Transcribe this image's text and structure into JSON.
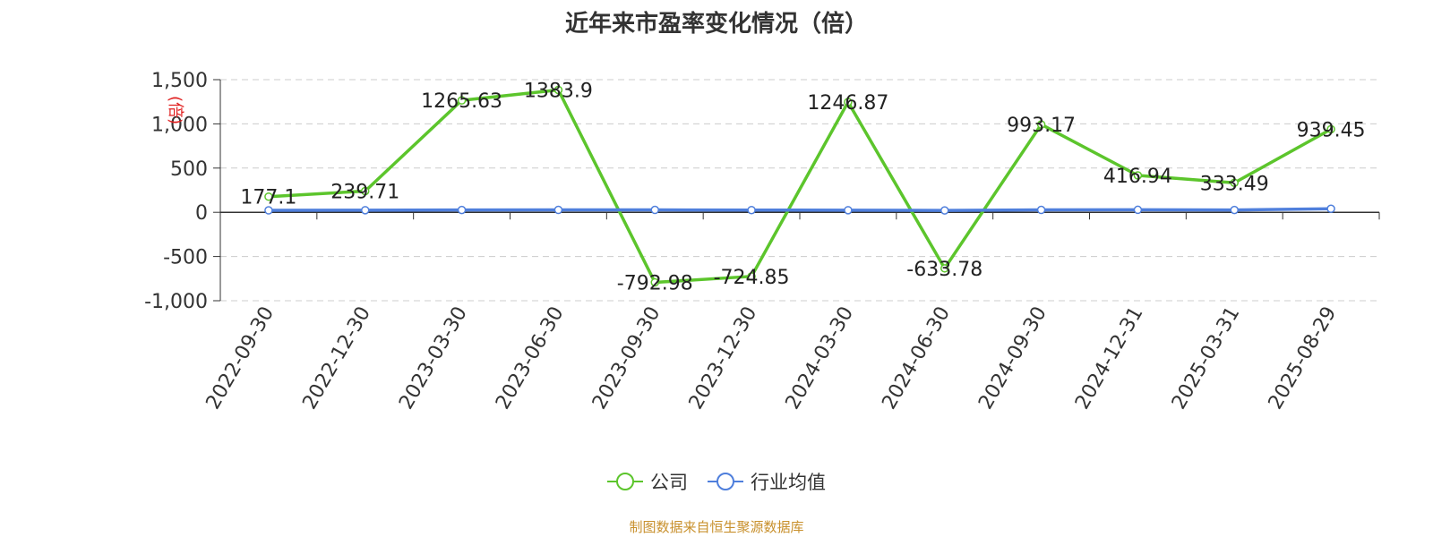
{
  "source_note": "制图数据来自恒生聚源数据库",
  "colors": {
    "company": "#5cc52c",
    "industry": "#4f7fdc",
    "grid": "#cccccc",
    "axis": "#333333",
    "ylabel": "#e02020"
  },
  "chart_data": {
    "type": "line",
    "title": "近年来市盈率变化情况（倍）",
    "ylabel": "(倍)",
    "xlabel": "",
    "categories": [
      "2022-09-30",
      "2022-12-30",
      "2023-03-30",
      "2023-06-30",
      "2023-09-30",
      "2023-12-30",
      "2024-03-30",
      "2024-06-30",
      "2024-09-30",
      "2024-12-31",
      "2025-03-31",
      "2025-08-29"
    ],
    "ylim": [
      -1000,
      1500
    ],
    "yticks": [
      -1000,
      -500,
      0,
      500,
      1000,
      1500
    ],
    "ytick_labels": [
      "-1,000",
      "-500",
      "0",
      "500",
      "1,000",
      "1,500"
    ],
    "grid": true,
    "legend_position": "bottom-center",
    "series": [
      {
        "name": "公司",
        "values": [
          177.1,
          239.71,
          1265.63,
          1383.9,
          -792.98,
          -724.85,
          1246.87,
          -633.78,
          993.17,
          416.94,
          333.49,
          939.45
        ],
        "labels": [
          "177.1",
          "239.71",
          "1265.63",
          "1383.9",
          "-792.98",
          "-724.85",
          "1246.87",
          "-633.78",
          "993.17",
          "416.94",
          "333.49",
          "939.45"
        ]
      },
      {
        "name": "行业均值",
        "values": [
          22,
          24,
          26,
          27,
          27,
          25,
          24,
          21,
          27,
          28,
          26,
          40
        ]
      }
    ]
  }
}
